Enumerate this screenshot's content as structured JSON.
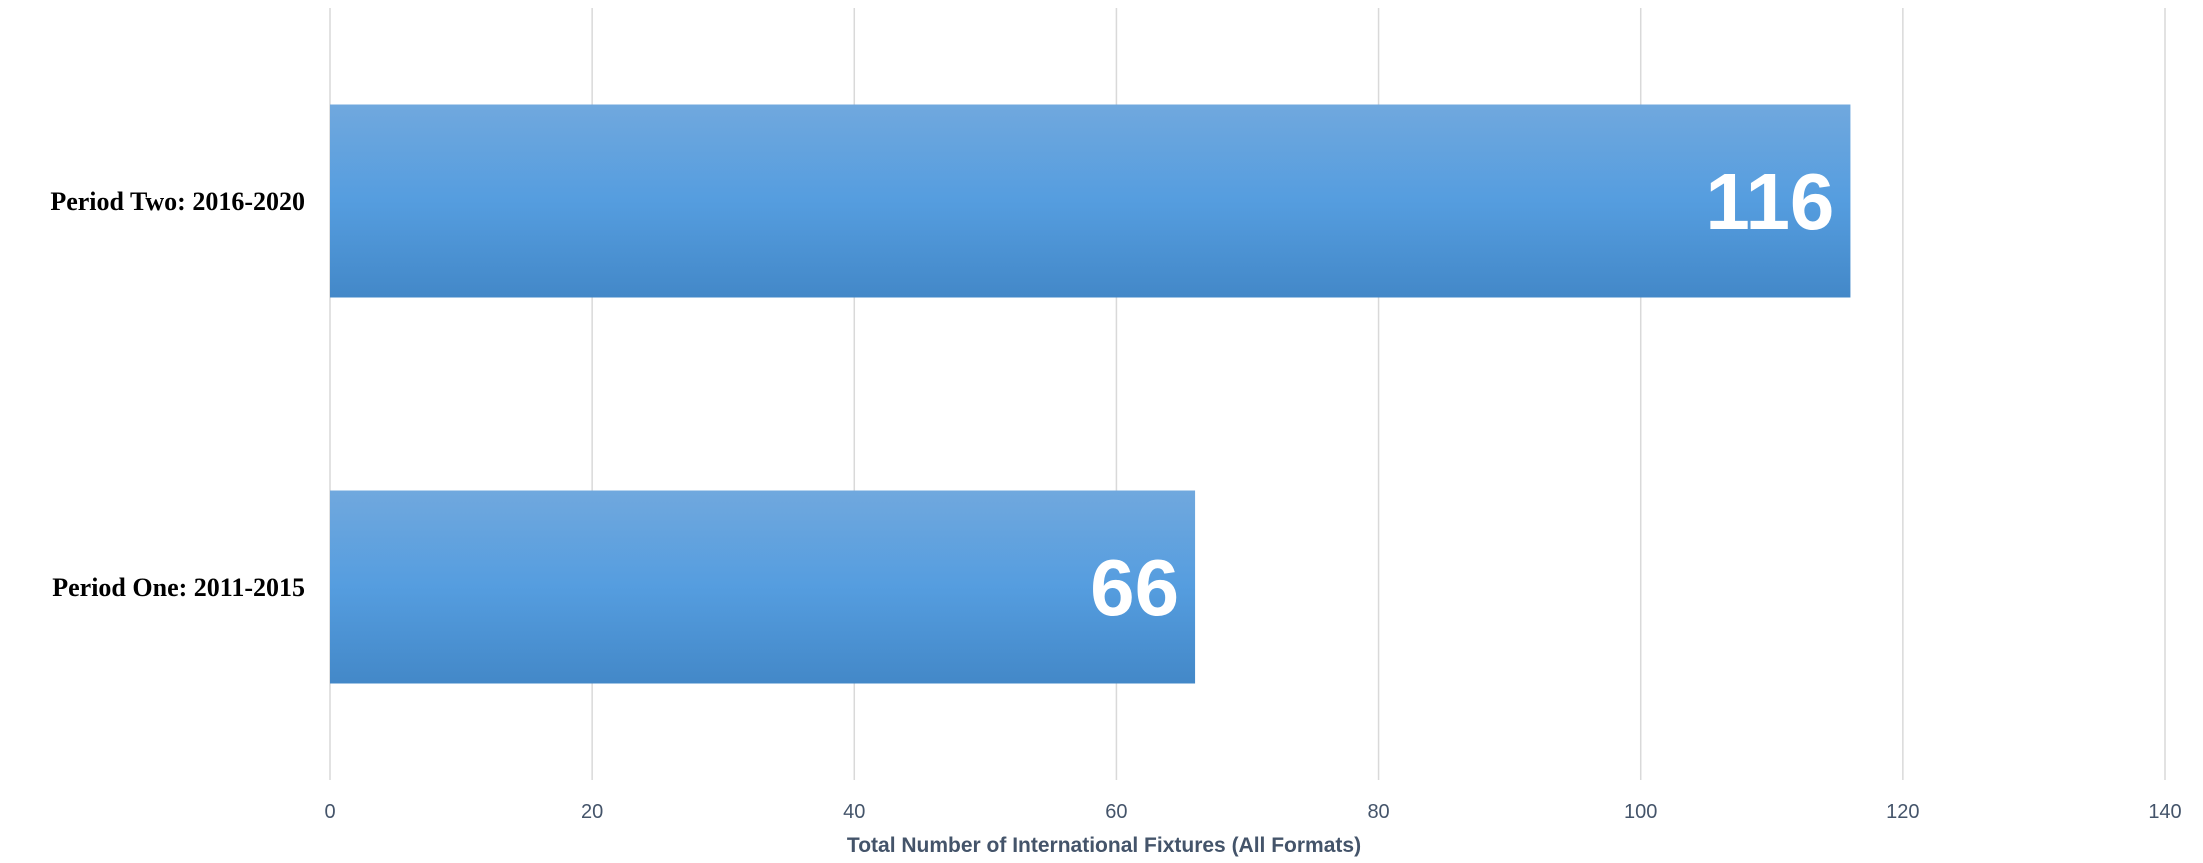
{
  "chart_data": {
    "type": "bar",
    "orientation": "horizontal",
    "categories": [
      "Period One: 2011-2015",
      "Period Two: 2016-2020"
    ],
    "values": [
      66,
      116
    ],
    "data_labels": [
      "66",
      "116"
    ],
    "title": "",
    "xlabel": "Total Number of International Fixtures (All Formats)",
    "ylabel": "",
    "xlim": [
      0,
      140
    ],
    "x_ticks": [
      0,
      20,
      40,
      60,
      80,
      100,
      120,
      140
    ],
    "grid": true,
    "legend": "none",
    "colors": {
      "bar_top": "#70a8de",
      "bar_mid": "#559ddf",
      "bar_bottom": "#4388c8",
      "gridline": "#d9d9d9",
      "tick_text": "#44546a",
      "data_label": "#ffffff"
    }
  }
}
